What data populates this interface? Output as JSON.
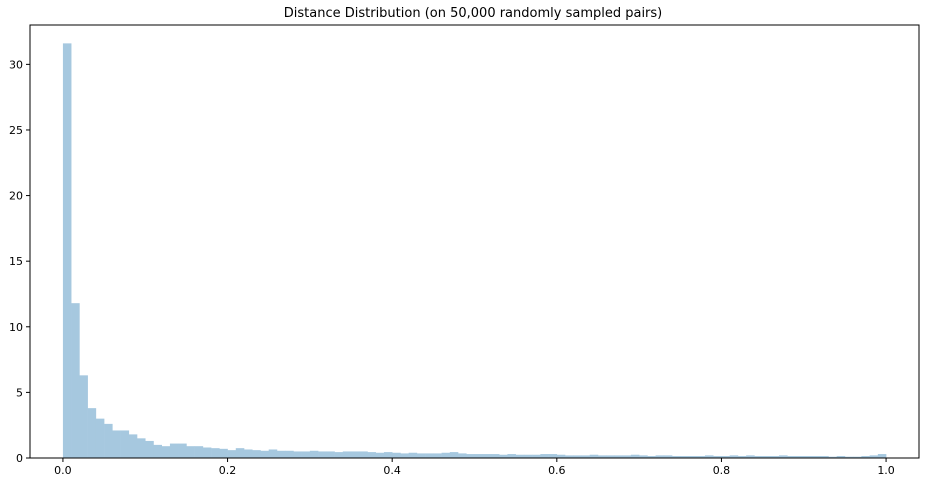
{
  "chart_data": {
    "type": "bar",
    "title": "Distance Distribution (on 50,000 randomly sampled pairs)",
    "xlabel": "",
    "ylabel": "",
    "xlim": [
      -0.04,
      1.04
    ],
    "ylim": [
      0,
      33
    ],
    "grid": false,
    "legend": "none",
    "bar_color": "#a6c8df",
    "xticks": [
      0.0,
      0.2,
      0.4,
      0.6,
      0.8,
      1.0
    ],
    "xtick_labels": [
      "0.0",
      "0.2",
      "0.4",
      "0.6",
      "0.8",
      "1.0"
    ],
    "yticks": [
      0,
      5,
      10,
      15,
      20,
      25,
      30
    ],
    "ytick_labels": [
      "0",
      "5",
      "10",
      "15",
      "20",
      "25",
      "30"
    ],
    "bin_start": 0.0,
    "bin_width": 0.01,
    "values": [
      31.6,
      11.8,
      6.3,
      3.8,
      3.0,
      2.6,
      2.1,
      2.1,
      1.8,
      1.5,
      1.3,
      1.0,
      0.9,
      1.1,
      1.1,
      0.9,
      0.9,
      0.8,
      0.75,
      0.7,
      0.6,
      0.75,
      0.65,
      0.6,
      0.55,
      0.65,
      0.55,
      0.55,
      0.5,
      0.5,
      0.55,
      0.5,
      0.5,
      0.45,
      0.5,
      0.5,
      0.5,
      0.45,
      0.4,
      0.45,
      0.4,
      0.35,
      0.4,
      0.35,
      0.35,
      0.35,
      0.4,
      0.45,
      0.35,
      0.3,
      0.3,
      0.3,
      0.3,
      0.25,
      0.3,
      0.25,
      0.25,
      0.25,
      0.3,
      0.3,
      0.25,
      0.2,
      0.2,
      0.2,
      0.25,
      0.2,
      0.2,
      0.2,
      0.2,
      0.25,
      0.2,
      0.15,
      0.2,
      0.2,
      0.15,
      0.15,
      0.15,
      0.15,
      0.2,
      0.15,
      0.15,
      0.2,
      0.15,
      0.2,
      0.15,
      0.15,
      0.15,
      0.2,
      0.15,
      0.15,
      0.15,
      0.15,
      0.15,
      0.1,
      0.15,
      0.1,
      0.1,
      0.15,
      0.2,
      0.3
    ]
  }
}
